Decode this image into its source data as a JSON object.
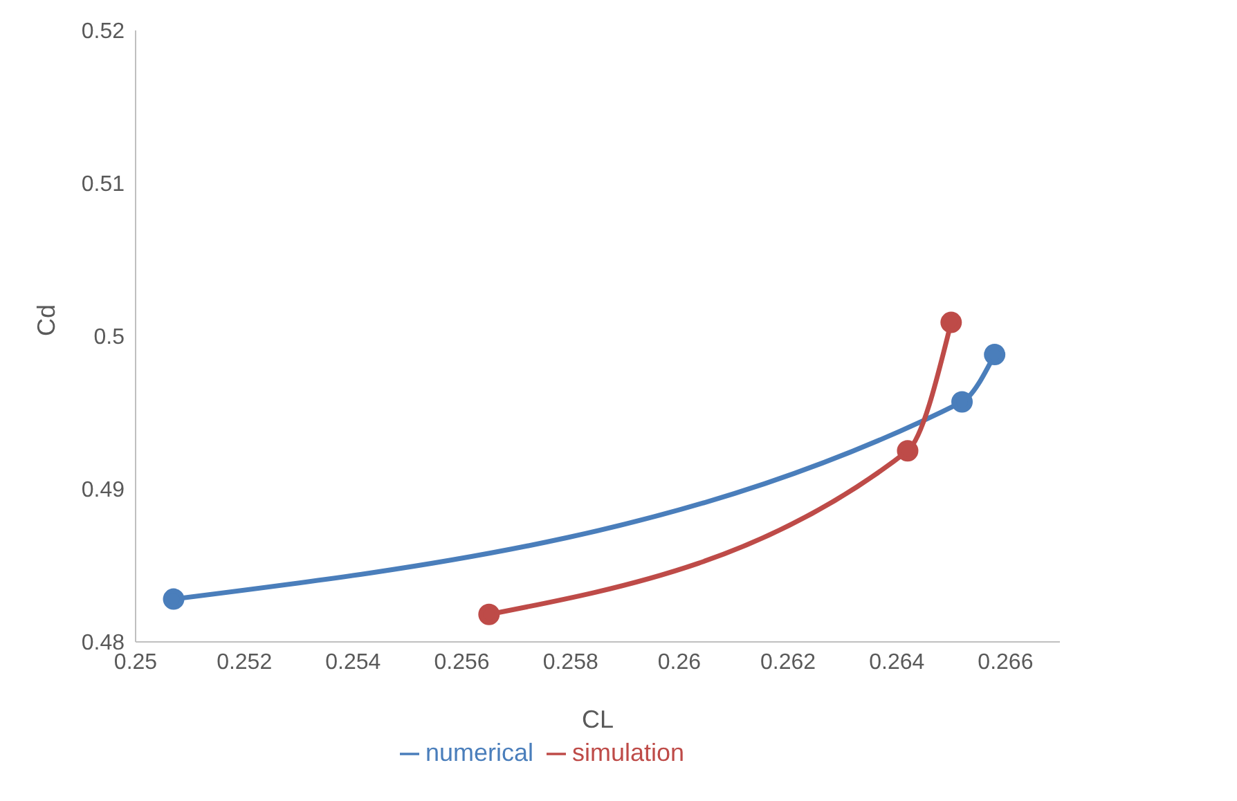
{
  "chart_data": {
    "type": "line",
    "xlabel": "CL",
    "ylabel": "Cd",
    "xlim": [
      0.25,
      0.267
    ],
    "xticks": [
      0.25,
      0.252,
      0.254,
      0.256,
      0.258,
      0.26,
      0.262,
      0.264,
      0.266
    ],
    "ylim": [
      0.48,
      0.52
    ],
    "yticks": [
      0.48,
      0.49,
      0.5,
      0.51,
      0.52
    ],
    "grid": false,
    "legend": "bottom",
    "marker": "circle",
    "line_style": "solid",
    "series": [
      {
        "name": "numerical",
        "color": "#4a7ebb",
        "x": [
          0.2507,
          0.2652,
          0.2658
        ],
        "values": [
          0.4828,
          0.4957,
          0.4988
        ]
      },
      {
        "name": "simulation",
        "color": "#be4b48",
        "x": [
          0.2565,
          0.2642,
          0.265
        ],
        "values": [
          0.4818,
          0.4925,
          0.5009
        ]
      }
    ]
  }
}
